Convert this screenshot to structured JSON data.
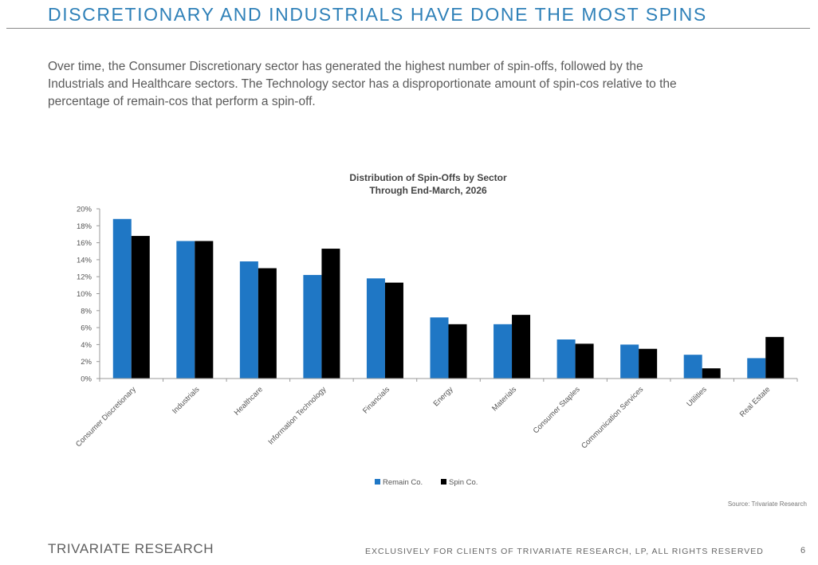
{
  "page": {
    "title": "DISCRETIONARY AND INDUSTRIALS HAVE DONE THE MOST SPINS",
    "intro_line1": "Over time, the Consumer Discretionary sector has generated the highest number of spin-offs, followed by the",
    "intro_line2": "Industrials and Healthcare sectors. The Technology sector has a disproportionate amount of spin-cos relative to the",
    "intro_line3": "percentage of remain-cos that perform a spin-off.",
    "source": "Source: Trivariate Research",
    "brand": "TRIVARIATE RESEARCH",
    "footer": "EXCLUSIVELY FOR CLIENTS OF TRIVARIATE RESEARCH, LP, ALL RIGHTS RESERVED",
    "page_number": "6"
  },
  "colors": {
    "remain": "#1f77c5",
    "spin": "#000000",
    "title": "#2e80b8"
  },
  "chart_data": {
    "type": "bar",
    "title": "Distribution of Spin-Offs by Sector",
    "subtitle": "Through End-March, 2026",
    "categories": [
      "Consumer Discretionary",
      "Industrials",
      "Healthcare",
      "Information Technology",
      "Financials",
      "Energy",
      "Materials",
      "Consumer Staples",
      "Communication Services",
      "Utilities",
      "Real Estate"
    ],
    "series": [
      {
        "name": "Remain Co.",
        "values": [
          18.8,
          16.2,
          13.8,
          12.2,
          11.8,
          7.2,
          6.4,
          4.6,
          4.0,
          2.8,
          2.4
        ]
      },
      {
        "name": "Spin Co.",
        "values": [
          16.8,
          16.2,
          13.0,
          15.3,
          11.3,
          6.4,
          7.5,
          4.1,
          3.5,
          1.2,
          4.9
        ]
      }
    ],
    "yticks": [
      "0%",
      "2%",
      "4%",
      "6%",
      "8%",
      "10%",
      "12%",
      "14%",
      "16%",
      "18%",
      "20%"
    ],
    "ylim": [
      0,
      20
    ],
    "xlabel": "",
    "ylabel": "",
    "legend": "bottom-center",
    "grid": false
  }
}
